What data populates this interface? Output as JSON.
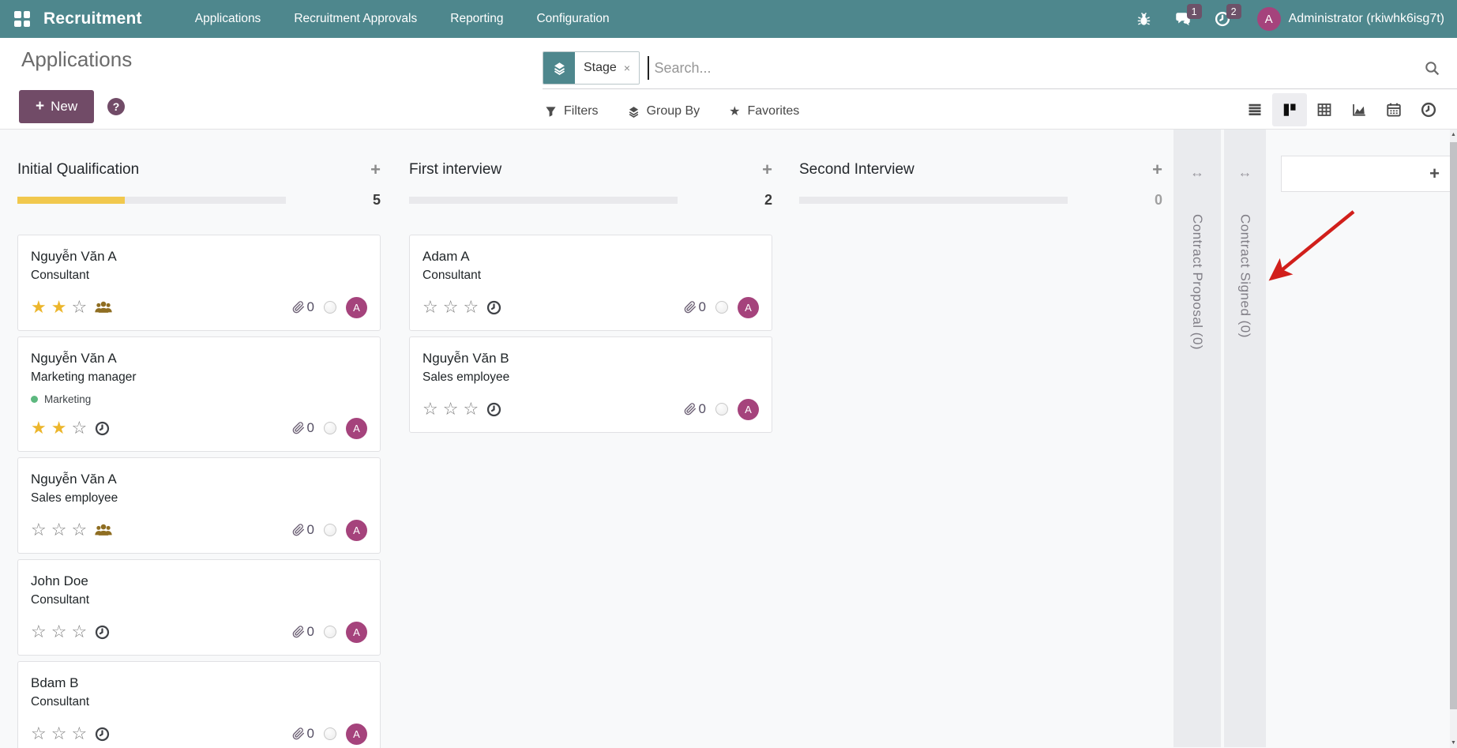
{
  "colors": {
    "navbar_bg": "#4e878d",
    "primary_purple": "#714b67",
    "avatar_bg": "#a5437c",
    "badge_bg": "#6d5269",
    "star_filled": "#ecb62c",
    "progress_fill": "#f1c84d",
    "tag_dot_green": "#5db87f",
    "annotation_arrow_red": "#d11f1b",
    "folded_column_bg": "#eaebee"
  },
  "icons": {
    "plus": "+",
    "close": "×",
    "resize_horizontal": "↔",
    "star_filled": "★",
    "star_empty": "☆",
    "help": "?",
    "scroll_up": "▲",
    "scroll_down": "▼"
  },
  "navbar": {
    "app_name": "Recruitment",
    "menu_items": [
      "Applications",
      "Recruitment Approvals",
      "Reporting",
      "Configuration"
    ],
    "message_badge": "1",
    "activity_badge": "2",
    "user_initial": "A",
    "user_name": "Administrator (rkiwhk6isg7t)"
  },
  "control_panel": {
    "title": "Applications",
    "new_button": "New",
    "search": {
      "facet_label": "Stage",
      "placeholder": "Search..."
    },
    "filters_label": "Filters",
    "group_by_label": "Group By",
    "favorites_label": "Favorites",
    "view_switcher": [
      "list",
      "kanban",
      "pivot",
      "graph",
      "calendar",
      "activity"
    ]
  },
  "kanban": {
    "columns": [
      {
        "title": "Initial Qualification",
        "count": "5",
        "progress_pct": 40,
        "cards": [
          {
            "name": "Nguyễn Văn A",
            "role": "Consultant",
            "stars": 2,
            "trailing_icon": "referrals",
            "attachments": "0",
            "avatar": "A"
          },
          {
            "name": "Nguyễn Văn A",
            "role": "Marketing manager",
            "tag": "Marketing",
            "stars": 2,
            "trailing_icon": "activity-clock",
            "attachments": "0",
            "avatar": "A"
          },
          {
            "name": "Nguyễn Văn A",
            "role": "Sales employee",
            "stars": 0,
            "trailing_icon": "referrals",
            "attachments": "0",
            "avatar": "A"
          },
          {
            "name": "John Doe",
            "role": "Consultant",
            "stars": 0,
            "trailing_icon": "activity-clock",
            "attachments": "0",
            "avatar": "A"
          },
          {
            "name": "Bdam B",
            "role": "Consultant",
            "stars": 0,
            "trailing_icon": "activity-clock",
            "attachments": "0",
            "avatar": "A"
          }
        ]
      },
      {
        "title": "First interview",
        "count": "2",
        "progress_pct": 0,
        "cards": [
          {
            "name": "Adam A",
            "role": "Consultant",
            "stars": 0,
            "trailing_icon": "activity-clock",
            "attachments": "0",
            "avatar": "A"
          },
          {
            "name": "Nguyễn Văn B",
            "role": "Sales employee",
            "stars": 0,
            "trailing_icon": "activity-clock",
            "attachments": "0",
            "avatar": "A"
          }
        ]
      },
      {
        "title": "Second Interview",
        "count": "0",
        "progress_pct": 0,
        "cards": []
      }
    ],
    "folded_columns": [
      "Contract Proposal (0)",
      "Contract Signed (0)"
    ]
  }
}
